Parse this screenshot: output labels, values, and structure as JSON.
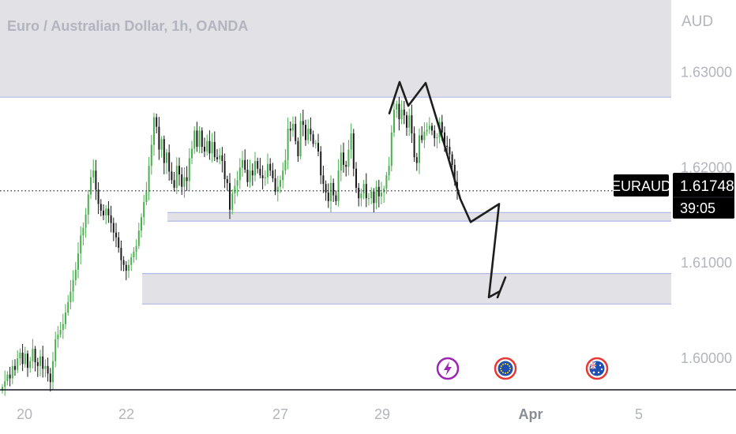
{
  "chart_header": {
    "title": "Euro / Australian Dollar, 1h, OANDA"
  },
  "colors": {
    "up_candle": "#4caf50",
    "down_candle": "#1a1a1a",
    "zone_fill": "#e1e1e6",
    "zone_border": "#b4b9e8",
    "pane_bg": "#ffffff",
    "axis_text": "#b2b5be",
    "price_tag_bg": "#000000",
    "symbol_tag_bg": "#000000",
    "projection_line": "#1e1e1e",
    "event_icon_purple": "#9c27b0",
    "event_icon_eu_blue": "#1e4fb3",
    "event_icon_au_blue": "#1e4fb3",
    "event_icon_ring_red": "#e53935"
  },
  "price_axis": {
    "currency_label": "AUD",
    "ticks": [
      "1.63000",
      "1.62000",
      "1.61000",
      "1.60000"
    ],
    "tick_values": [
      1.63,
      1.62,
      1.61,
      1.6
    ]
  },
  "time_axis": {
    "ticks": [
      "20",
      "22",
      "27",
      "29",
      "Apr",
      "5"
    ],
    "tick_bold": [
      false,
      false,
      false,
      false,
      true,
      false
    ]
  },
  "last_price": {
    "symbol": "EURAUD",
    "price": "1.61748",
    "countdown": "39:05",
    "value": 1.61748
  },
  "event_icons": [
    {
      "name": "lightning-event-icon",
      "glyph": "⚡"
    },
    {
      "name": "eu-flag-event-icon",
      "glyph": "EU"
    },
    {
      "name": "au-flag-event-icon",
      "glyph": "AU"
    }
  ],
  "chart_data": {
    "type": "candlestick",
    "title": "Euro / Australian Dollar, 1h, OANDA",
    "ylabel": "AUD",
    "ylim": [
      1.5966,
      1.6375
    ],
    "xlabels": [
      "20",
      "22",
      "27",
      "29",
      "Apr",
      "5"
    ],
    "grid": false,
    "last_price": 1.61748,
    "zones": [
      {
        "top": 1.6375,
        "bottom": 1.6273
      },
      {
        "top": 1.6152,
        "bottom": 1.6143
      },
      {
        "top": 1.6088,
        "bottom": 1.6056
      }
    ],
    "projection": [
      [
        1.6256,
        1.6289,
        1.6264,
        1.6288,
        1.6228,
        1.6166,
        1.6142,
        1.6161,
        1.6063,
        1.6069
      ],
      [
        1.6063,
        1.6084
      ]
    ],
    "series": [
      {
        "close": [
          1.5969,
          1.5975,
          1.5982,
          1.5978,
          1.5991,
          1.5987,
          1.5999,
          1.6005,
          1.5993,
          1.6004,
          1.5989,
          1.5996,
          1.6009,
          1.5995,
          1.5991,
          1.6001,
          1.5988,
          1.5991,
          1.5983,
          1.5974,
          1.5996,
          1.6019,
          1.6024,
          1.6029,
          1.6035,
          1.6047,
          1.6058,
          1.6069,
          1.6081,
          1.6092,
          1.6109,
          1.6128,
          1.6136,
          1.615,
          1.6171,
          1.6189,
          1.6196,
          1.6176,
          1.6161,
          1.6154,
          1.6149,
          1.6156,
          1.6149,
          1.6141,
          1.6131,
          1.6126,
          1.6115,
          1.6102,
          1.6097,
          1.6091,
          1.6097,
          1.6105,
          1.6111,
          1.6117,
          1.6133,
          1.6147,
          1.6163,
          1.6174,
          1.6201,
          1.6223,
          1.6252,
          1.6242,
          1.6218,
          1.6229,
          1.6204,
          1.6215,
          1.6195,
          1.6186,
          1.6178,
          1.6201,
          1.6192,
          1.6179,
          1.6189,
          1.6185,
          1.6209,
          1.6219,
          1.6238,
          1.6221,
          1.6238,
          1.6221,
          1.6216,
          1.6227,
          1.6214,
          1.6226,
          1.621,
          1.6208,
          1.6212,
          1.6206,
          1.6187,
          1.6183,
          1.6155,
          1.6172,
          1.618,
          1.6186,
          1.6199,
          1.6207,
          1.6197,
          1.6184,
          1.6196,
          1.6191,
          1.6206,
          1.6198,
          1.6191,
          1.6188,
          1.6189,
          1.6203,
          1.6196,
          1.6188,
          1.6174,
          1.6179,
          1.6186,
          1.6196,
          1.6207,
          1.624,
          1.6238,
          1.6245,
          1.6227,
          1.6211,
          1.6248,
          1.6244,
          1.6228,
          1.624,
          1.6234,
          1.6224,
          1.6225,
          1.6216,
          1.6191,
          1.6182,
          1.6173,
          1.6164,
          1.6183,
          1.617,
          1.6164,
          1.6196,
          1.6215,
          1.6202,
          1.62,
          1.6218,
          1.6235,
          1.6198,
          1.6178,
          1.6167,
          1.6172,
          1.6182,
          1.6167,
          1.6167,
          1.6174,
          1.6162,
          1.6179,
          1.6169,
          1.6173,
          1.6177,
          1.6191,
          1.6201,
          1.6236,
          1.626,
          1.6266,
          1.625,
          1.626,
          1.6254,
          1.6241,
          1.6254,
          1.6235,
          1.621,
          1.6204,
          1.6233,
          1.6228,
          1.6237,
          1.6239,
          1.6243,
          1.6238,
          1.623,
          1.6231,
          1.6247,
          1.6236,
          1.6222,
          1.6221,
          1.6213,
          1.6202,
          1.6184,
          1.6175
        ]
      }
    ]
  }
}
